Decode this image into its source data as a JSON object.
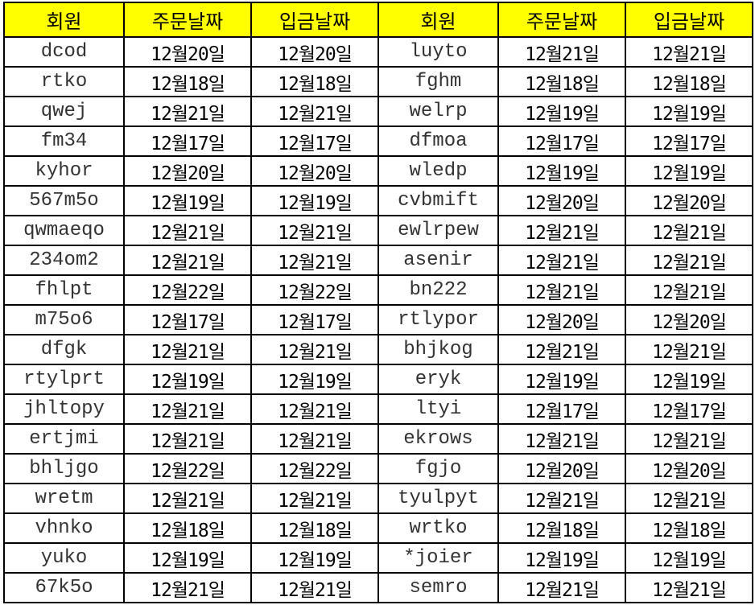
{
  "headers": [
    "회원",
    "주문날짜",
    "입금날짜",
    "회원",
    "주문날짜",
    "입금날짜"
  ],
  "colors": {
    "header_bg": "#ffff00",
    "border": "#000000",
    "member_text": "#333333",
    "date_text": "#000000"
  },
  "rows": [
    [
      "dcod",
      "12월20일",
      "12월20일",
      "luyto",
      "12월21일",
      "12월21일"
    ],
    [
      "rtko",
      "12월18일",
      "12월18일",
      "fghm",
      "12월18일",
      "12월18일"
    ],
    [
      "qwej",
      "12월21일",
      "12월21일",
      "welrp",
      "12월19일",
      "12월19일"
    ],
    [
      "fm34",
      "12월17일",
      "12월17일",
      "dfmoa",
      "12월17일",
      "12월17일"
    ],
    [
      "kyhor",
      "12월20일",
      "12월20일",
      "wledp",
      "12월19일",
      "12월19일"
    ],
    [
      "567m5o",
      "12월19일",
      "12월19일",
      "cvbmift",
      "12월20일",
      "12월20일"
    ],
    [
      "qwmaeqo",
      "12월21일",
      "12월21일",
      "ewlrpew",
      "12월21일",
      "12월21일"
    ],
    [
      "234om2",
      "12월21일",
      "12월21일",
      "asenir",
      "12월21일",
      "12월21일"
    ],
    [
      "fhlpt",
      "12월22일",
      "12월22일",
      "bn222",
      "12월21일",
      "12월21일"
    ],
    [
      "m75o6",
      "12월17일",
      "12월17일",
      "rtlypor",
      "12월20일",
      "12월20일"
    ],
    [
      "dfgk",
      "12월21일",
      "12월21일",
      "bhjkog",
      "12월21일",
      "12월21일"
    ],
    [
      "rtylprt",
      "12월19일",
      "12월19일",
      "eryk",
      "12월19일",
      "12월19일"
    ],
    [
      "jhltopy",
      "12월21일",
      "12월21일",
      "ltyi",
      "12월17일",
      "12월17일"
    ],
    [
      "ertjmi",
      "12월21일",
      "12월21일",
      "ekrows",
      "12월21일",
      "12월21일"
    ],
    [
      "bhljgo",
      "12월22일",
      "12월22일",
      "fgjo",
      "12월20일",
      "12월20일"
    ],
    [
      "wretm",
      "12월21일",
      "12월21일",
      "tyulpyt",
      "12월21일",
      "12월21일"
    ],
    [
      "vhnko",
      "12월18일",
      "12월18일",
      "wrtko",
      "12월18일",
      "12월18일"
    ],
    [
      "yuko",
      "12월19일",
      "12월19일",
      "*joier",
      "12월19일",
      "12월19일"
    ],
    [
      "67k5o",
      "12월21일",
      "12월21일",
      "semro",
      "12월21일",
      "12월21일"
    ]
  ]
}
